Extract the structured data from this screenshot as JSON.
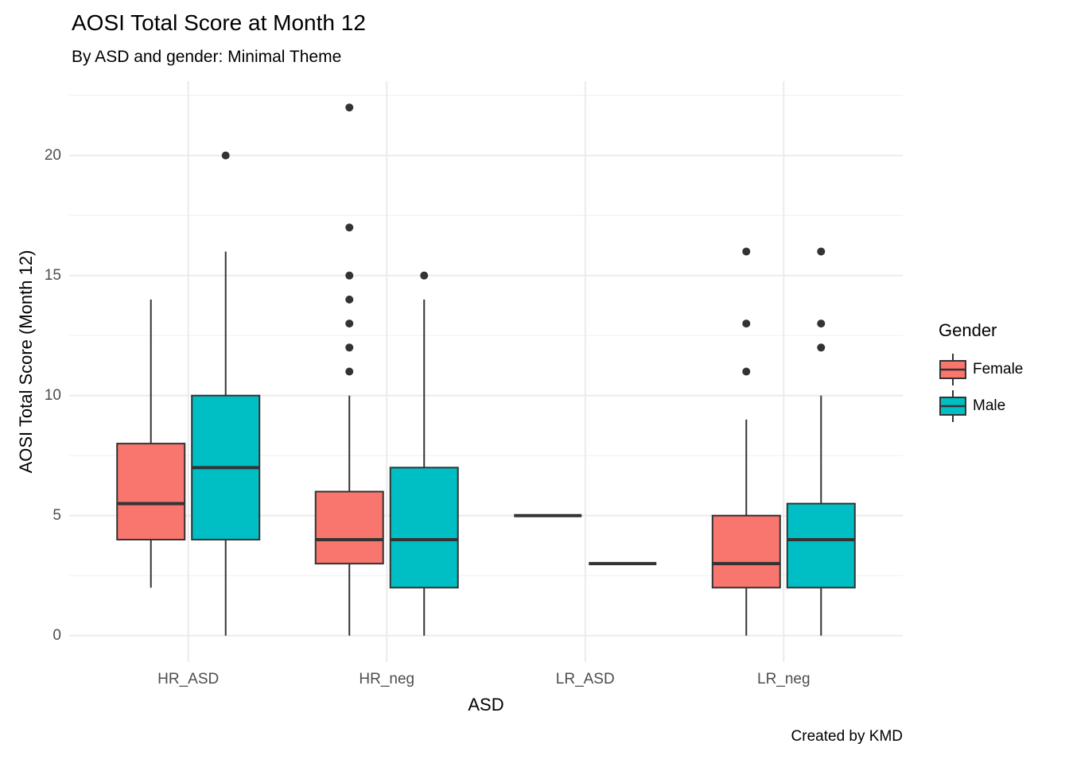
{
  "chart_data": {
    "type": "boxplot",
    "title": "AOSI Total Score at Month 12",
    "subtitle": "By ASD and gender: Minimal Theme",
    "xlabel": "ASD",
    "ylabel": "AOSI Total Score (Month 12)",
    "caption": "Created by KMD",
    "categories": [
      "HR_ASD",
      "HR_neg",
      "LR_ASD",
      "LR_neg"
    ],
    "y_ticks": [
      0,
      5,
      10,
      15,
      20
    ],
    "y_minor_ticks": [
      2.5,
      7.5,
      12.5,
      17.5,
      22.5
    ],
    "ylim": [
      -1.1,
      23.1
    ],
    "grid": true,
    "legend": {
      "title": "Gender",
      "position": "right",
      "entries": [
        {
          "label": "Female",
          "color": "#F8766D"
        },
        {
          "label": "Male",
          "color": "#00BFC4"
        }
      ]
    },
    "series": [
      {
        "name": "Female",
        "color": "#F8766D",
        "boxes": [
          {
            "category": "HR_ASD",
            "low": 2,
            "q1": 4,
            "median": 5.5,
            "q3": 8,
            "high": 14,
            "outliers": []
          },
          {
            "category": "HR_neg",
            "low": 0,
            "q1": 3,
            "median": 4,
            "q3": 6,
            "high": 10,
            "outliers": [
              11,
              12,
              13,
              14,
              15,
              17,
              22
            ]
          },
          {
            "category": "LR_ASD",
            "low": 5,
            "q1": 5,
            "median": 5,
            "q3": 5,
            "high": 5,
            "outliers": []
          },
          {
            "category": "LR_neg",
            "low": 0,
            "q1": 2,
            "median": 3,
            "q3": 5,
            "high": 9,
            "outliers": [
              11,
              13,
              16
            ]
          }
        ]
      },
      {
        "name": "Male",
        "color": "#00BFC4",
        "boxes": [
          {
            "category": "HR_ASD",
            "low": 0,
            "q1": 4,
            "median": 7,
            "q3": 10,
            "high": 16,
            "outliers": [
              20
            ]
          },
          {
            "category": "HR_neg",
            "low": 0,
            "q1": 2,
            "median": 4,
            "q3": 7,
            "high": 14,
            "outliers": [
              15
            ]
          },
          {
            "category": "LR_ASD",
            "low": 3,
            "q1": 3,
            "median": 3,
            "q3": 3,
            "high": 3,
            "outliers": []
          },
          {
            "category": "LR_neg",
            "low": 0,
            "q1": 2,
            "median": 4,
            "q3": 5.5,
            "high": 10,
            "outliers": [
              12,
              13,
              16
            ]
          }
        ]
      }
    ],
    "style": {
      "outline": "#333333",
      "grid_major": "#EBEBEB",
      "grid_minor": "#F2F2F2",
      "tick_label_color": "#4D4D4D",
      "text_color": "#000000",
      "background": "#FFFFFF"
    }
  }
}
